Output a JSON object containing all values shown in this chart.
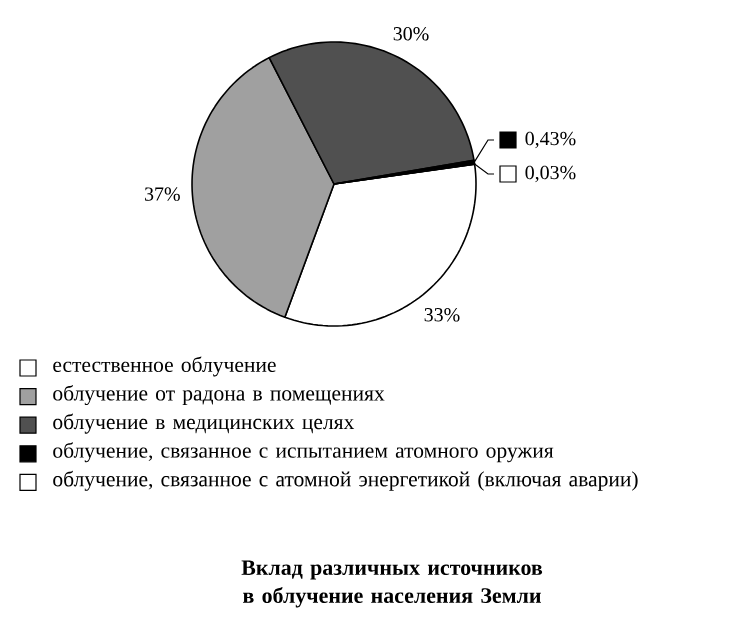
{
  "chart_data": {
    "type": "pie",
    "title": "Вклад различных источников в облучение населения Земли",
    "categories": [
      "естественное облучение",
      "облучение от радона в помещениях",
      "облучение в медицинских целях",
      "облучение, связанное с испытанием атомного оружия",
      "облучение, связанное с атомной энергетикой (включая аварии)"
    ],
    "values": [
      33,
      37,
      30,
      0.43,
      0.03
    ],
    "value_labels": [
      "33%",
      "37%",
      "30%",
      "0,43%",
      "0,03%"
    ],
    "colors": [
      "#ffffff",
      "#a0a0a0",
      "#505050",
      "#000000",
      "#ffffff"
    ],
    "legend": "bottom"
  }
}
